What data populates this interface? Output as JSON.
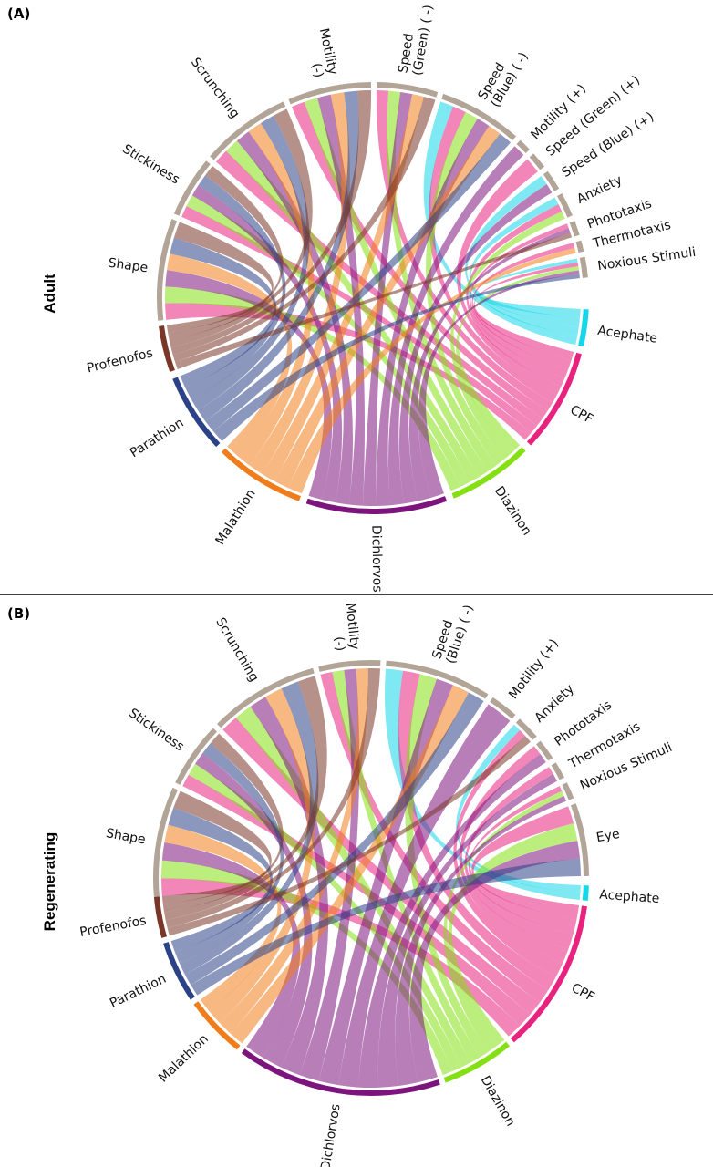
{
  "divider_color": "#000000",
  "panels": [
    {
      "letter": "(A)",
      "row_label": "Adult",
      "segments": [
        {
          "name": "Profenofos",
          "kind": "chem",
          "color": "#7a3728",
          "a0": 160.0,
          "a1": 172.5
        },
        {
          "name": "Parathion",
          "kind": "chem",
          "color": "#2b4287",
          "a0": 136.5,
          "a1": 158.0
        },
        {
          "name": "Malathion",
          "kind": "chem",
          "color": "#f07d1b",
          "a0": 110.0,
          "a1": 134.5
        },
        {
          "name": "Dichlorvos",
          "kind": "chem",
          "color": "#7d147d",
          "a0": 70.0,
          "a1": 108.0
        },
        {
          "name": "Diazinon",
          "kind": "chem",
          "color": "#84e013",
          "a0": 45.0,
          "a1": 68.0
        },
        {
          "name": "CPF",
          "kind": "chem",
          "color": "#e8237f",
          "a0": 15.0,
          "a1": 43.0
        },
        {
          "name": "Acephate",
          "kind": "chem",
          "color": "#16d7ea",
          "a0": 3.0,
          "a1": 13.0
        },
        {
          "name": "Noxious Stimuli",
          "kind": "end",
          "color": "#b2a497",
          "a0": -11.0,
          "a1": -5.5
        },
        {
          "name": "Thermotaxis",
          "kind": "end",
          "color": "#b2a497",
          "a0": -15.5,
          "a1": -12.5
        },
        {
          "name": "Phototaxis",
          "kind": "end",
          "color": "#b2a497",
          "a0": -21.0,
          "a1": -17.0
        },
        {
          "name": "Anxiety",
          "kind": "end",
          "color": "#b2a497",
          "a0": -29.0,
          "a1": -22.5
        },
        {
          "name": "Speed (Blue) (+)",
          "kind": "end",
          "color": "#b2a497",
          "a0": -36.0,
          "a1": -30.5
        },
        {
          "name": "Speed (Green) (+)",
          "kind": "end",
          "color": "#b2a497",
          "a0": -42.0,
          "a1": -37.5
        },
        {
          "name": "Motility (+)",
          "kind": "end",
          "color": "#b2a497",
          "a0": -47.0,
          "a1": -43.5
        },
        {
          "name": "Speed\n(Blue) ( -)",
          "kind": "end",
          "color": "#b2a497",
          "a0": -71.0,
          "a1": -48.5
        },
        {
          "name": "Speed\n(Green) ( -)",
          "kind": "end",
          "color": "#b2a497",
          "a0": -89.0,
          "a1": -72.5
        },
        {
          "name": "Motility\n(-)",
          "kind": "end",
          "color": "#b2a497",
          "a0": -113.0,
          "a1": -90.5
        },
        {
          "name": "Scrunching",
          "kind": "end",
          "color": "#b2a497",
          "a0": -139.0,
          "a1": -114.5
        },
        {
          "name": "Stickiness",
          "kind": "end",
          "color": "#b2a497",
          "a0": -157.0,
          "a1": -140.5
        },
        {
          "name": "Shape",
          "kind": "end",
          "color": "#b2a497",
          "a0": -186.0,
          "a1": -158.5
        }
      ],
      "links": [
        [
          "Acephate",
          "Noxious Stimuli"
        ],
        [
          "Acephate",
          "Anxiety"
        ],
        [
          "Acephate",
          "Speed (Blue) (+)"
        ],
        [
          "Acephate",
          "Speed\n(Blue) ( -)"
        ],
        [
          "CPF",
          "Noxious Stimuli"
        ],
        [
          "CPF",
          "Thermotaxis"
        ],
        [
          "CPF",
          "Phototaxis"
        ],
        [
          "CPF",
          "Anxiety"
        ],
        [
          "CPF",
          "Speed (Green) (+)"
        ],
        [
          "CPF",
          "Speed\n(Blue) ( -)"
        ],
        [
          "CPF",
          "Speed\n(Green) ( -)"
        ],
        [
          "CPF",
          "Motility\n(-)"
        ],
        [
          "CPF",
          "Scrunching"
        ],
        [
          "CPF",
          "Stickiness"
        ],
        [
          "CPF",
          "Shape"
        ],
        [
          "Diazinon",
          "Noxious Stimuli"
        ],
        [
          "Diazinon",
          "Anxiety"
        ],
        [
          "Diazinon",
          "Speed\n(Blue) ( -)"
        ],
        [
          "Diazinon",
          "Speed\n(Green) ( -)"
        ],
        [
          "Diazinon",
          "Motility\n(-)"
        ],
        [
          "Diazinon",
          "Scrunching"
        ],
        [
          "Diazinon",
          "Stickiness"
        ],
        [
          "Diazinon",
          "Shape"
        ],
        [
          "Dichlorvos",
          "Noxious Stimuli"
        ],
        [
          "Dichlorvos",
          "Phototaxis"
        ],
        [
          "Dichlorvos",
          "Speed (Blue) (+)"
        ],
        [
          "Dichlorvos",
          "Motility (+)"
        ],
        [
          "Dichlorvos",
          "Speed\n(Blue) ( -)"
        ],
        [
          "Dichlorvos",
          "Speed\n(Green) ( -)"
        ],
        [
          "Dichlorvos",
          "Motility\n(-)"
        ],
        [
          "Dichlorvos",
          "Scrunching"
        ],
        [
          "Dichlorvos",
          "Stickiness"
        ],
        [
          "Dichlorvos",
          "Shape"
        ],
        [
          "Malathion",
          "Thermotaxis"
        ],
        [
          "Malathion",
          "Speed\n(Blue) ( -)"
        ],
        [
          "Malathion",
          "Speed\n(Green) ( -)"
        ],
        [
          "Malathion",
          "Motility\n(-)"
        ],
        [
          "Malathion",
          "Scrunching"
        ],
        [
          "Malathion",
          "Shape"
        ],
        [
          "Parathion",
          "Noxious Stimuli"
        ],
        [
          "Parathion",
          "Speed\n(Blue) ( -)"
        ],
        [
          "Parathion",
          "Motility\n(-)"
        ],
        [
          "Parathion",
          "Scrunching"
        ],
        [
          "Parathion",
          "Stickiness"
        ],
        [
          "Parathion",
          "Shape"
        ],
        [
          "Profenofos",
          "Phototaxis"
        ],
        [
          "Profenofos",
          "Speed\n(Green) ( -)"
        ],
        [
          "Profenofos",
          "Motility\n(-)"
        ],
        [
          "Profenofos",
          "Scrunching"
        ],
        [
          "Profenofos",
          "Stickiness"
        ],
        [
          "Profenofos",
          "Shape"
        ]
      ]
    },
    {
      "letter": "(B)",
      "row_label": "Regenerating",
      "segments": [
        {
          "name": "Profenofos",
          "kind": "chem",
          "color": "#7a3728",
          "a0": 164.0,
          "a1": 175.0
        },
        {
          "name": "Parathion",
          "kind": "chem",
          "color": "#2b4287",
          "a0": 146.0,
          "a1": 162.5
        },
        {
          "name": "Malathion",
          "kind": "chem",
          "color": "#f07d1b",
          "a0": 128.0,
          "a1": 144.5
        },
        {
          "name": "Dichlorvos",
          "kind": "chem",
          "color": "#7d147d",
          "a0": 71.5,
          "a1": 126.5
        },
        {
          "name": "Diazinon",
          "kind": "chem",
          "color": "#84e013",
          "a0": 50.5,
          "a1": 70.0
        },
        {
          "name": "CPF",
          "kind": "chem",
          "color": "#e8237f",
          "a0": 7.5,
          "a1": 49.0
        },
        {
          "name": "Acephate",
          "kind": "chem",
          "color": "#16d7ea",
          "a0": 2.0,
          "a1": 6.0
        },
        {
          "name": "Eye",
          "kind": "end",
          "color": "#b2a497",
          "a0": -20.0,
          "a1": -0.5
        },
        {
          "name": "Noxious Stimuli",
          "kind": "end",
          "color": "#b2a497",
          "a0": -26.0,
          "a1": -21.5
        },
        {
          "name": "Thermotaxis",
          "kind": "end",
          "color": "#b2a497",
          "a0": -32.0,
          "a1": -27.5
        },
        {
          "name": "Phototaxis",
          "kind": "end",
          "color": "#b2a497",
          "a0": -39.0,
          "a1": -33.5
        },
        {
          "name": "Anxiety",
          "kind": "end",
          "color": "#b2a497",
          "a0": -47.0,
          "a1": -40.5
        },
        {
          "name": "Motility (+)",
          "kind": "end",
          "color": "#b2a497",
          "a0": -56.0,
          "a1": -48.5
        },
        {
          "name": "Speed\n(Blue) ( -)",
          "kind": "end",
          "color": "#b2a497",
          "a0": -86.0,
          "a1": -57.5
        },
        {
          "name": "Motility\n(-)",
          "kind": "end",
          "color": "#b2a497",
          "a0": -104.0,
          "a1": -87.5
        },
        {
          "name": "Scrunching",
          "kind": "end",
          "color": "#b2a497",
          "a0": -135.0,
          "a1": -105.5
        },
        {
          "name": "Stickiness",
          "kind": "end",
          "color": "#b2a497",
          "a0": -154.0,
          "a1": -136.5
        },
        {
          "name": "Shape",
          "kind": "end",
          "color": "#b2a497",
          "a0": -185.0,
          "a1": -155.5
        }
      ],
      "links": [
        [
          "Acephate",
          "Anxiety"
        ],
        [
          "Acephate",
          "Speed\n(Blue) ( -)"
        ],
        [
          "CPF",
          "Eye"
        ],
        [
          "CPF",
          "Noxious Stimuli"
        ],
        [
          "CPF",
          "Thermotaxis"
        ],
        [
          "CPF",
          "Phototaxis"
        ],
        [
          "CPF",
          "Anxiety"
        ],
        [
          "CPF",
          "Speed\n(Blue) ( -)"
        ],
        [
          "CPF",
          "Motility\n(-)"
        ],
        [
          "CPF",
          "Scrunching"
        ],
        [
          "CPF",
          "Stickiness"
        ],
        [
          "CPF",
          "Shape"
        ],
        [
          "Diazinon",
          "Eye"
        ],
        [
          "Diazinon",
          "Noxious Stimuli"
        ],
        [
          "Diazinon",
          "Speed\n(Blue) ( -)"
        ],
        [
          "Diazinon",
          "Motility\n(-)"
        ],
        [
          "Diazinon",
          "Scrunching"
        ],
        [
          "Diazinon",
          "Stickiness"
        ],
        [
          "Diazinon",
          "Shape"
        ],
        [
          "Dichlorvos",
          "Eye"
        ],
        [
          "Dichlorvos",
          "Noxious Stimuli"
        ],
        [
          "Dichlorvos",
          "Thermotaxis"
        ],
        [
          "Dichlorvos",
          "Phototaxis"
        ],
        [
          "Dichlorvos",
          "Motility (+)"
        ],
        [
          "Dichlorvos",
          "Speed\n(Blue) ( -)"
        ],
        [
          "Dichlorvos",
          "Motility\n(-)"
        ],
        [
          "Dichlorvos",
          "Scrunching"
        ],
        [
          "Dichlorvos",
          "Stickiness"
        ],
        [
          "Dichlorvos",
          "Shape"
        ],
        [
          "Malathion",
          "Speed\n(Blue) ( -)"
        ],
        [
          "Malathion",
          "Motility\n(-)"
        ],
        [
          "Malathion",
          "Scrunching"
        ],
        [
          "Malathion",
          "Shape"
        ],
        [
          "Parathion",
          "Eye"
        ],
        [
          "Parathion",
          "Speed\n(Blue) ( -)"
        ],
        [
          "Parathion",
          "Scrunching"
        ],
        [
          "Parathion",
          "Stickiness"
        ],
        [
          "Parathion",
          "Shape"
        ],
        [
          "Profenofos",
          "Anxiety"
        ],
        [
          "Profenofos",
          "Motility\n(-)"
        ],
        [
          "Profenofos",
          "Scrunching"
        ],
        [
          "Profenofos",
          "Stickiness"
        ],
        [
          "Profenofos",
          "Shape"
        ]
      ]
    }
  ]
}
